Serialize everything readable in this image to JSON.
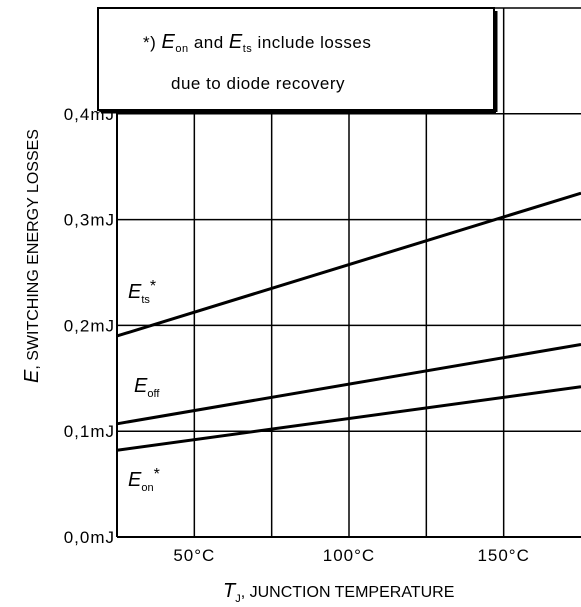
{
  "chart_data": {
    "type": "line",
    "x": [
      25,
      175
    ],
    "x_tick_values": [
      50,
      100,
      150
    ],
    "x_tick_labels": [
      "50°C",
      "100°C",
      "150°C"
    ],
    "xlim": [
      25,
      175
    ],
    "y_tick_values": [
      0.0,
      0.1,
      0.2,
      0.3,
      0.4
    ],
    "y_tick_labels": [
      "0,0mJ",
      "0,1mJ",
      "0,2mJ",
      "0,3mJ",
      "0,4mJ"
    ],
    "ylim": [
      0,
      0.5
    ],
    "grid": true,
    "xlabel": {
      "sym": "T",
      "sub": "J",
      "rest": ", JUNCTION TEMPERATURE"
    },
    "ylabel": {
      "sym": "E",
      "rest": ", SWITCHING ENERGY LOSSES"
    },
    "series": [
      {
        "name": "Ets",
        "sym": "E",
        "sub": "ts",
        "mark": "*",
        "values": [
          0.19,
          0.325
        ]
      },
      {
        "name": "Eoff",
        "sym": "E",
        "sub": "off",
        "mark": "",
        "values": [
          0.107,
          0.182
        ]
      },
      {
        "name": "Eon",
        "sym": "E",
        "sub": "on",
        "mark": "*",
        "values": [
          0.082,
          0.142
        ]
      }
    ],
    "annotation": {
      "prefix": "*) ",
      "e1": "E",
      "e1_sub": "on",
      "mid": " and ",
      "e2": "E",
      "e2_sub": "ts",
      "suffix": " include losses",
      "line2": "due to diode recovery"
    },
    "line_color": "#000000"
  }
}
